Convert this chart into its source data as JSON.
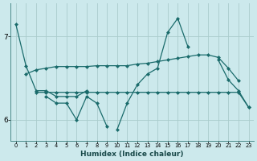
{
  "xlabel": "Humidex (Indice chaleur)",
  "bg_color": "#cce9ec",
  "grid_color": "#aacccc",
  "line_color": "#1a6b6b",
  "x_values": [
    0,
    1,
    2,
    3,
    4,
    5,
    6,
    7,
    8,
    9,
    10,
    11,
    12,
    13,
    14,
    15,
    16,
    17,
    18,
    19,
    20,
    21,
    22,
    23
  ],
  "line1": [
    7.15,
    6.65,
    6.35,
    6.35,
    6.28,
    6.28,
    6.28,
    6.35,
    null,
    null,
    5.88,
    6.2,
    6.42,
    6.55,
    6.62,
    7.05,
    7.22,
    6.88,
    null,
    null,
    6.72,
    6.48,
    6.35,
    6.15
  ],
  "line2": [
    null,
    null,
    6.33,
    6.33,
    6.33,
    6.33,
    6.33,
    6.33,
    6.33,
    6.33,
    6.33,
    6.33,
    6.33,
    6.33,
    6.33,
    6.33,
    6.33,
    6.33,
    6.33,
    6.33,
    6.33,
    6.33,
    6.33,
    6.15
  ],
  "line3": [
    null,
    6.55,
    6.6,
    6.62,
    6.64,
    6.64,
    6.64,
    6.64,
    6.65,
    6.65,
    6.65,
    6.65,
    6.67,
    6.68,
    6.7,
    6.72,
    6.74,
    6.76,
    6.78,
    6.78,
    6.75,
    6.62,
    6.47,
    null
  ],
  "line4": [
    null,
    null,
    null,
    6.28,
    6.2,
    6.2,
    6.0,
    6.28,
    6.2,
    5.92,
    null,
    null,
    null,
    null,
    null,
    null,
    null,
    null,
    null,
    null,
    null,
    null,
    null,
    null
  ],
  "ylim": [
    5.75,
    7.4
  ],
  "yticks": [
    6.0,
    7.0
  ],
  "xlim": [
    -0.5,
    23.5
  ]
}
